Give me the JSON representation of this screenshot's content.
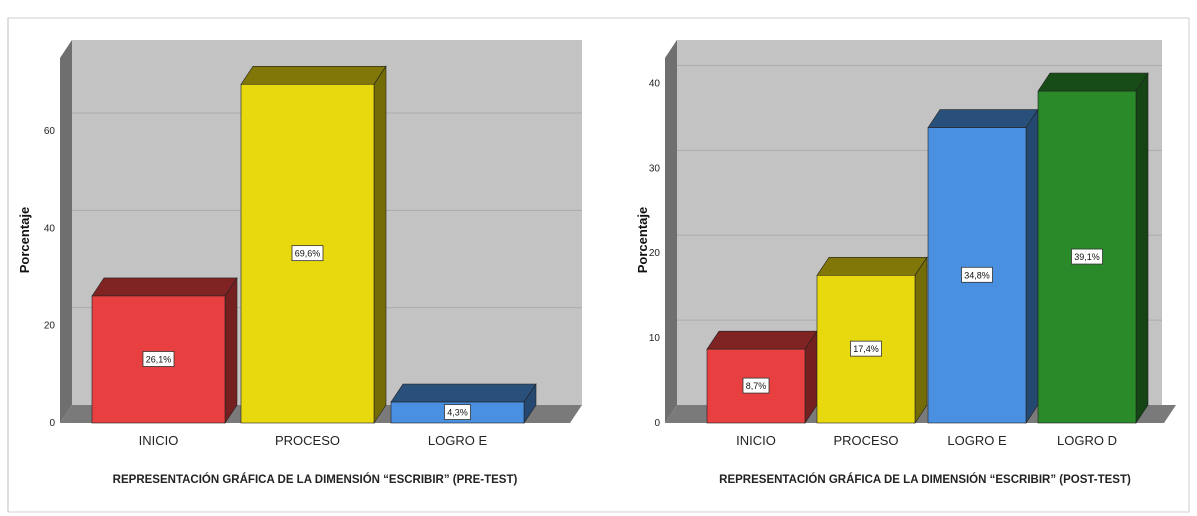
{
  "chart_data": [
    {
      "type": "bar",
      "title": "REPRESENTACIÓN GRÁFICA DE LA DIMENSIÓN “ESCRIBIR” (PRE-TEST)",
      "ylabel": "Porcentaje",
      "xlabel": "",
      "categories": [
        "INICIO",
        "PROCESO",
        "LOGRO E"
      ],
      "values": [
        26.1,
        69.6,
        4.3
      ],
      "data_labels": [
        "26,1%",
        "69,6%",
        "4,3%"
      ],
      "colors": [
        "#e84040",
        "#e8d80e",
        "#4a90e0"
      ],
      "yticks": [
        0,
        20,
        40,
        60
      ],
      "ylim": [
        0,
        75
      ],
      "grid": true,
      "legend": "none"
    },
    {
      "type": "bar",
      "title": "REPRESENTACIÓN GRÁFICA DE LA DIMENSIÓN “ESCRIBIR” (POST-TEST)",
      "ylabel": "Porcentaje",
      "xlabel": "",
      "categories": [
        "INICIO",
        "PROCESO",
        "LOGRO E",
        "LOGRO D"
      ],
      "values": [
        8.7,
        17.4,
        34.8,
        39.1
      ],
      "data_labels": [
        "8,7%",
        "17,4%",
        "34,8%",
        "39,1%"
      ],
      "colors": [
        "#e84040",
        "#e8d80e",
        "#4a90e0",
        "#2a8a2a"
      ],
      "yticks": [
        0,
        10,
        20,
        30,
        40
      ],
      "ylim": [
        0,
        43
      ],
      "grid": true,
      "legend": "none"
    }
  ]
}
